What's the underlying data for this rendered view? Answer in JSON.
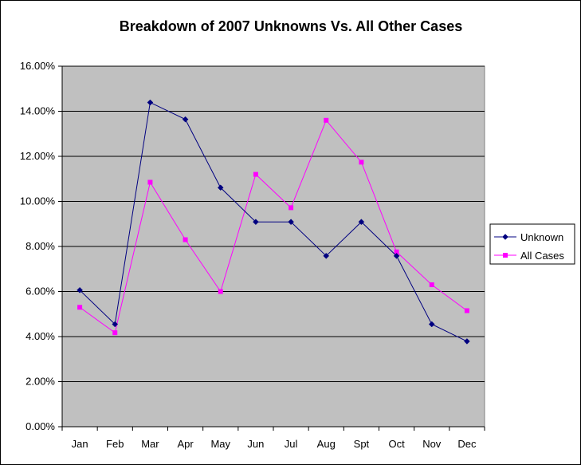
{
  "chart_data": {
    "type": "line",
    "title": "Breakdown of 2007 Unknowns Vs. All Other Cases",
    "xlabel": "",
    "ylabel": "",
    "categories": [
      "Jan",
      "Feb",
      "Mar",
      "Apr",
      "May",
      "Jun",
      "Jul",
      "Aug",
      "Spt",
      "Oct",
      "Nov",
      "Dec"
    ],
    "y_ticks": [
      "0.00%",
      "2.00%",
      "4.00%",
      "6.00%",
      "8.00%",
      "10.00%",
      "12.00%",
      "14.00%",
      "16.00%"
    ],
    "ylim": [
      0,
      16
    ],
    "grid": true,
    "legend_position": "right",
    "plot_background": "#c0c0c0",
    "series": [
      {
        "name": "Unknown",
        "color": "#000080",
        "marker": "diamond",
        "values": [
          6.06,
          4.55,
          14.39,
          13.64,
          10.61,
          9.09,
          9.09,
          7.58,
          9.09,
          7.58,
          4.55,
          3.79
        ]
      },
      {
        "name": "All Cases",
        "color": "#ff00ff",
        "marker": "square",
        "values": [
          5.3,
          4.17,
          10.85,
          8.3,
          6.0,
          11.2,
          9.72,
          13.6,
          11.74,
          7.76,
          6.3,
          5.15
        ]
      }
    ]
  }
}
